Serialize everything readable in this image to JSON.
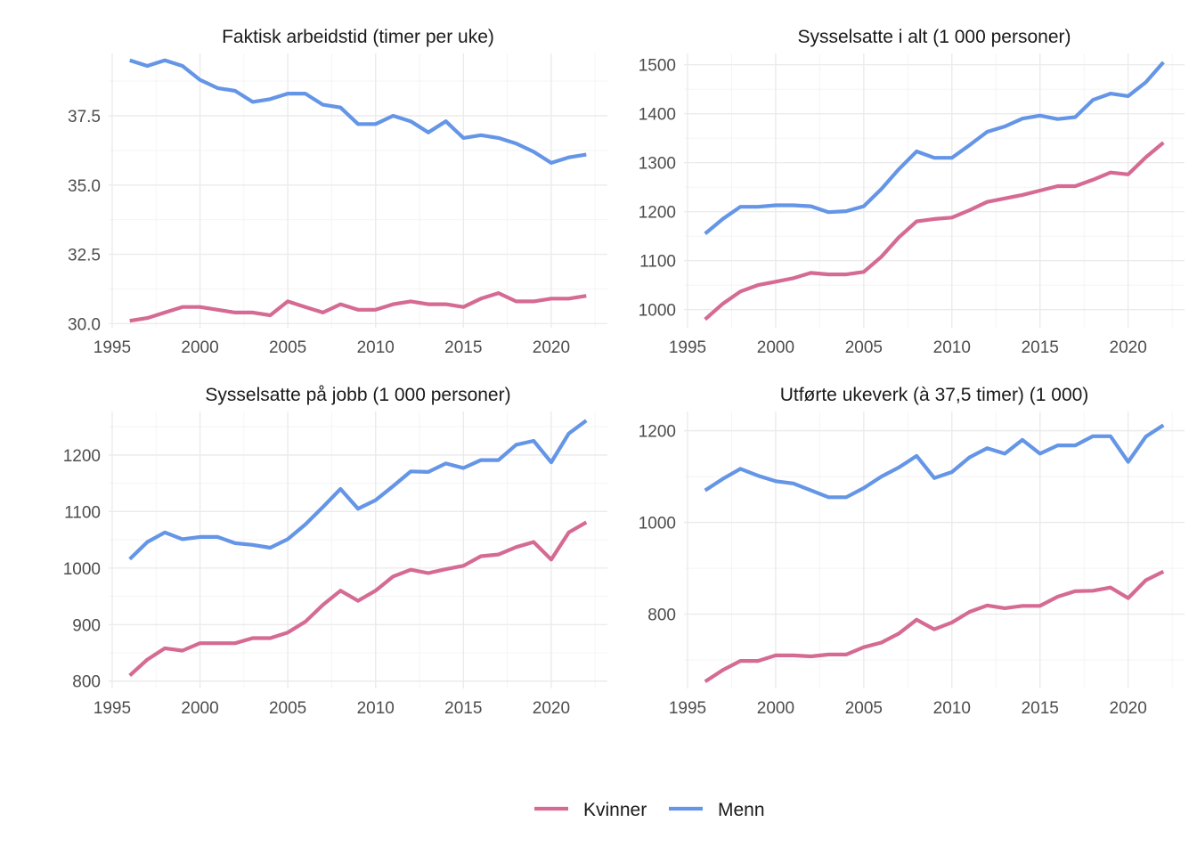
{
  "chart_data": [
    {
      "type": "line",
      "title": "Faktisk arbeidstid (timer per uke)",
      "xlabel": "",
      "ylabel": "",
      "xlim": [
        1994.8,
        2023.2
      ],
      "ylim": [
        29.85,
        39.75
      ],
      "x_ticks": [
        1995,
        2000,
        2005,
        2010,
        2015,
        2020
      ],
      "y_ticks": [
        30,
        32.5,
        35,
        37.5
      ],
      "y_tick_labels": [
        "30.0",
        "32.5",
        "35.0",
        "37.5"
      ],
      "x": [
        1996,
        1997,
        1998,
        1999,
        2000,
        2001,
        2002,
        2003,
        2004,
        2005,
        2006,
        2007,
        2008,
        2009,
        2010,
        2011,
        2012,
        2013,
        2014,
        2015,
        2016,
        2017,
        2018,
        2019,
        2020,
        2021,
        2022
      ],
      "series": [
        {
          "name": "Kvinner",
          "values": [
            30.1,
            30.2,
            30.4,
            30.6,
            30.6,
            30.5,
            30.4,
            30.4,
            30.3,
            30.8,
            30.6,
            30.4,
            30.7,
            30.5,
            30.5,
            30.7,
            30.8,
            30.7,
            30.7,
            30.6,
            30.9,
            31.1,
            30.8,
            30.8,
            30.9,
            30.9,
            31.0
          ]
        },
        {
          "name": "Menn",
          "values": [
            39.5,
            39.3,
            39.5,
            39.3,
            38.8,
            38.5,
            38.4,
            38.0,
            38.1,
            38.3,
            38.3,
            37.9,
            37.8,
            37.2,
            37.2,
            37.5,
            37.3,
            36.9,
            37.3,
            36.7,
            36.8,
            36.7,
            36.5,
            36.2,
            35.8,
            36.0,
            36.1
          ]
        }
      ]
    },
    {
      "type": "line",
      "title": "Sysselsatte i alt (1 000 personer)",
      "xlabel": "",
      "ylabel": "",
      "xlim": [
        1994.8,
        2023.2
      ],
      "ylim": [
        963,
        1523
      ],
      "x_ticks": [
        1995,
        2000,
        2005,
        2010,
        2015,
        2020
      ],
      "y_ticks": [
        1000,
        1100,
        1200,
        1300,
        1400,
        1500
      ],
      "y_tick_labels": [
        "1000",
        "1100",
        "1200",
        "1300",
        "1400",
        "1500"
      ],
      "x": [
        1996,
        1997,
        1998,
        1999,
        2000,
        2001,
        2002,
        2003,
        2004,
        2005,
        2006,
        2007,
        2008,
        2009,
        2010,
        2011,
        2012,
        2013,
        2014,
        2015,
        2016,
        2017,
        2018,
        2019,
        2020,
        2021,
        2022
      ],
      "series": [
        {
          "name": "Kvinner",
          "values": [
            980,
            1012,
            1037,
            1050,
            1057,
            1064,
            1075,
            1072,
            1072,
            1077,
            1108,
            1148,
            1180,
            1185,
            1188,
            1203,
            1220,
            1227,
            1234,
            1243,
            1252,
            1252,
            1265,
            1280,
            1276,
            1311,
            1341
          ]
        },
        {
          "name": "Menn",
          "values": [
            1155,
            1185,
            1210,
            1210,
            1213,
            1213,
            1211,
            1199,
            1201,
            1211,
            1246,
            1287,
            1323,
            1310,
            1310,
            1336,
            1363,
            1374,
            1390,
            1396,
            1389,
            1393,
            1428,
            1441,
            1436,
            1464,
            1505
          ]
        }
      ]
    },
    {
      "type": "line",
      "title": "Sysselsatte på jobb (1 000 personer)",
      "xlabel": "",
      "ylabel": "",
      "xlim": [
        1994.8,
        2023.2
      ],
      "ylim": [
        787,
        1277
      ],
      "x_ticks": [
        1995,
        2000,
        2005,
        2010,
        2015,
        2020
      ],
      "y_ticks": [
        800,
        900,
        1000,
        1100,
        1200
      ],
      "y_tick_labels": [
        "800",
        "900",
        "1000",
        "1100",
        "1200"
      ],
      "x": [
        1996,
        1997,
        1998,
        1999,
        2000,
        2001,
        2002,
        2003,
        2004,
        2005,
        2006,
        2007,
        2008,
        2009,
        2010,
        2011,
        2012,
        2013,
        2014,
        2015,
        2016,
        2017,
        2018,
        2019,
        2020,
        2021,
        2022
      ],
      "series": [
        {
          "name": "Kvinner",
          "values": [
            810,
            838,
            858,
            854,
            867,
            867,
            867,
            876,
            876,
            886,
            905,
            935,
            960,
            942,
            960,
            985,
            997,
            991,
            998,
            1004,
            1021,
            1024,
            1037,
            1046,
            1015,
            1063,
            1081
          ]
        },
        {
          "name": "Menn",
          "values": [
            1016,
            1046,
            1063,
            1051,
            1055,
            1055,
            1044,
            1041,
            1036,
            1051,
            1077,
            1108,
            1140,
            1105,
            1120,
            1145,
            1171,
            1170,
            1185,
            1177,
            1191,
            1191,
            1218,
            1225,
            1187,
            1238,
            1261
          ]
        }
      ]
    },
    {
      "type": "line",
      "title": "Utførte ukeverk (à 37,5 timer) (1 000)",
      "xlabel": "",
      "ylabel": "",
      "xlim": [
        1994.8,
        2023.2
      ],
      "ylim": [
        638,
        1242
      ],
      "x_ticks": [
        1995,
        2000,
        2005,
        2010,
        2015,
        2020
      ],
      "y_ticks": [
        800,
        1000,
        1200
      ],
      "y_tick_labels": [
        "800",
        "1000",
        "1200"
      ],
      "x": [
        1996,
        1997,
        1998,
        1999,
        2000,
        2001,
        2002,
        2003,
        2004,
        2005,
        2006,
        2007,
        2008,
        2009,
        2010,
        2011,
        2012,
        2013,
        2014,
        2015,
        2016,
        2017,
        2018,
        2019,
        2020,
        2021,
        2022
      ],
      "series": [
        {
          "name": "Kvinner",
          "values": [
            653,
            678,
            698,
            698,
            710,
            710,
            708,
            712,
            712,
            728,
            738,
            758,
            788,
            767,
            782,
            805,
            819,
            813,
            818,
            818,
            838,
            850,
            851,
            858,
            835,
            874,
            893
          ]
        },
        {
          "name": "Menn",
          "values": [
            1070,
            1095,
            1117,
            1102,
            1090,
            1085,
            1070,
            1055,
            1055,
            1075,
            1100,
            1120,
            1145,
            1097,
            1110,
            1142,
            1162,
            1150,
            1180,
            1150,
            1168,
            1168,
            1188,
            1188,
            1132,
            1187,
            1212
          ]
        }
      ]
    }
  ],
  "legend": {
    "placement": "bottom",
    "items": [
      {
        "label": "Kvinner",
        "color": "#d56a92"
      },
      {
        "label": "Menn",
        "color": "#6495e6"
      }
    ]
  },
  "colors": {
    "Kvinner": "#d56a92",
    "Menn": "#6495e6"
  }
}
